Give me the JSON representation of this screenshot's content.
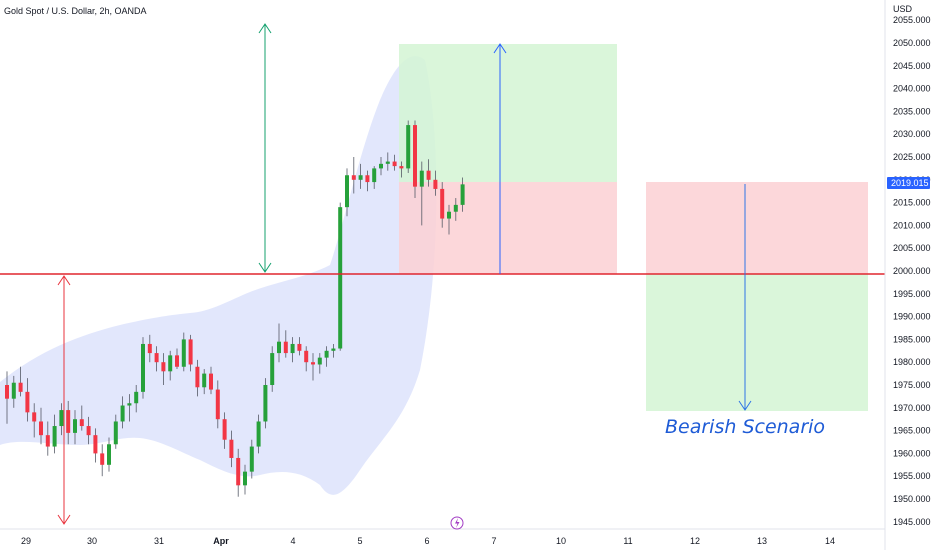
{
  "header": {
    "title": "Gold Spot / U.S. Dollar, 2h, OANDA"
  },
  "colors": {
    "up": "#26a13a",
    "down": "#f23645",
    "support_line": "#e0262f",
    "band_fill": "#dde3fb",
    "profit_zone": "#d4f5d4",
    "loss_zone": "#fbd0d3",
    "long_arrow": "#2962ff",
    "short_arrow": "#2e74e6",
    "green_arrow": "#14a06e",
    "red_arrow": "#e8333d",
    "price_tag": "#2962ff",
    "scenario_text": "#1e5bd6",
    "axis_text": "#131722"
  },
  "chart_data": {
    "type": "candlestick",
    "title": "Gold Spot / U.S. Dollar, 2h, OANDA",
    "ylabel": "USD",
    "ylim": [
      1943,
      2058
    ],
    "y_ticks": [
      1945,
      1950,
      1955,
      1960,
      1965,
      1970,
      1975,
      1980,
      1985,
      1990,
      1995,
      2000,
      2005,
      2010,
      2015,
      2020,
      2025,
      2030,
      2035,
      2040,
      2045,
      2050,
      2055
    ],
    "x_tick_labels": [
      "29",
      "30",
      "31",
      "Apr",
      "4",
      "5",
      "6",
      "7",
      "10",
      "11",
      "12",
      "13",
      "14"
    ],
    "current_price": "2019.015",
    "support_level": 1999,
    "annotation": "Bearish Scenario",
    "candles_ohlc": [
      [
        1975.0,
        1978.0,
        1966.5,
        1972.0
      ],
      [
        1972.0,
        1977.0,
        1970.0,
        1975.5
      ],
      [
        1975.5,
        1979.0,
        1972.5,
        1973.5
      ],
      [
        1973.5,
        1976.5,
        1967.0,
        1969.0
      ],
      [
        1969.0,
        1971.0,
        1963.5,
        1967.0
      ],
      [
        1967.0,
        1970.0,
        1962.0,
        1964.0
      ],
      [
        1964.0,
        1967.0,
        1959.5,
        1961.5
      ],
      [
        1961.5,
        1968.5,
        1960.0,
        1966.0
      ],
      [
        1966.0,
        1971.0,
        1964.0,
        1969.5
      ],
      [
        1969.5,
        1971.5,
        1962.0,
        1964.5
      ],
      [
        1964.5,
        1969.5,
        1962.0,
        1967.5
      ],
      [
        1967.5,
        1970.5,
        1965.0,
        1966.0
      ],
      [
        1966.0,
        1968.0,
        1962.0,
        1964.0
      ],
      [
        1964.0,
        1965.5,
        1958.0,
        1960.0
      ],
      [
        1960.0,
        1962.0,
        1955.0,
        1957.5
      ],
      [
        1957.5,
        1963.5,
        1956.0,
        1962.0
      ],
      [
        1962.0,
        1968.5,
        1961.0,
        1967.0
      ],
      [
        1967.0,
        1972.5,
        1965.5,
        1970.5
      ],
      [
        1970.5,
        1973.0,
        1967.0,
        1971.0
      ],
      [
        1971.0,
        1975.0,
        1969.0,
        1973.5
      ],
      [
        1973.5,
        1985.5,
        1972.0,
        1984.0
      ],
      [
        1984.0,
        1986.0,
        1980.0,
        1982.0
      ],
      [
        1982.0,
        1983.5,
        1978.0,
        1980.0
      ],
      [
        1980.0,
        1982.0,
        1975.0,
        1978.0
      ],
      [
        1978.0,
        1982.5,
        1976.0,
        1981.5
      ],
      [
        1981.5,
        1983.0,
        1978.5,
        1979.0
      ],
      [
        1979.0,
        1986.5,
        1978.0,
        1985.0
      ],
      [
        1985.0,
        1986.0,
        1978.0,
        1979.5
      ],
      [
        1979.0,
        1980.5,
        1972.5,
        1974.5
      ],
      [
        1974.5,
        1978.5,
        1973.0,
        1977.5
      ],
      [
        1977.5,
        1979.0,
        1973.0,
        1974.0
      ],
      [
        1974.0,
        1976.0,
        1965.5,
        1967.5
      ],
      [
        1967.5,
        1969.0,
        1961.0,
        1963.0
      ],
      [
        1963.0,
        1965.0,
        1957.0,
        1959.0
      ],
      [
        1959.0,
        1961.0,
        1950.5,
        1953.0
      ],
      [
        1953.0,
        1957.5,
        1951.0,
        1956.0
      ],
      [
        1956.0,
        1963.0,
        1954.5,
        1961.5
      ],
      [
        1961.5,
        1968.5,
        1960.0,
        1967.0
      ],
      [
        1967.0,
        1976.5,
        1965.5,
        1975.0
      ],
      [
        1975.0,
        1983.5,
        1973.5,
        1982.0
      ],
      [
        1982.0,
        1988.5,
        1980.0,
        1984.5
      ],
      [
        1984.5,
        1987.0,
        1981.0,
        1982.0
      ],
      [
        1982.0,
        1985.5,
        1980.0,
        1984.0
      ],
      [
        1984.0,
        1985.5,
        1981.5,
        1982.5
      ],
      [
        1982.5,
        1983.5,
        1978.0,
        1980.0
      ],
      [
        1980.0,
        1982.0,
        1976.0,
        1979.5
      ],
      [
        1979.5,
        1982.0,
        1977.5,
        1981.0
      ],
      [
        1981.0,
        1983.5,
        1979.0,
        1982.5
      ],
      [
        1982.5,
        1984.0,
        1981.0,
        1983.0
      ],
      [
        1983.0,
        2015.0,
        1982.5,
        2014.0
      ],
      [
        2014.0,
        2022.5,
        2012.0,
        2021.0
      ],
      [
        2021.0,
        2025.0,
        2017.0,
        2020.0
      ],
      [
        2020.0,
        2023.5,
        2018.0,
        2021.0
      ],
      [
        2021.0,
        2022.0,
        2017.5,
        2019.5
      ],
      [
        2019.5,
        2023.0,
        2018.0,
        2022.5
      ],
      [
        2022.5,
        2025.0,
        2021.0,
        2023.5
      ],
      [
        2023.5,
        2026.0,
        2022.0,
        2024.0
      ],
      [
        2024.0,
        2025.5,
        2022.0,
        2023.0
      ],
      [
        2023.0,
        2024.0,
        2020.5,
        2022.5
      ],
      [
        2022.5,
        2033.0,
        2021.5,
        2032.0
      ],
      [
        2032.0,
        2033.0,
        2016.0,
        2018.5
      ],
      [
        2018.5,
        2024.0,
        2010.0,
        2022.0
      ],
      [
        2022.0,
        2024.5,
        2018.5,
        2020.0
      ],
      [
        2020.0,
        2022.0,
        2016.5,
        2018.0
      ],
      [
        2018.0,
        2019.5,
        2009.5,
        2011.5
      ],
      [
        2011.5,
        2014.5,
        2008.0,
        2013.0
      ],
      [
        2013.0,
        2016.0,
        2011.0,
        2014.5
      ],
      [
        2014.5,
        2020.5,
        2013.0,
        2019.0
      ]
    ]
  }
}
